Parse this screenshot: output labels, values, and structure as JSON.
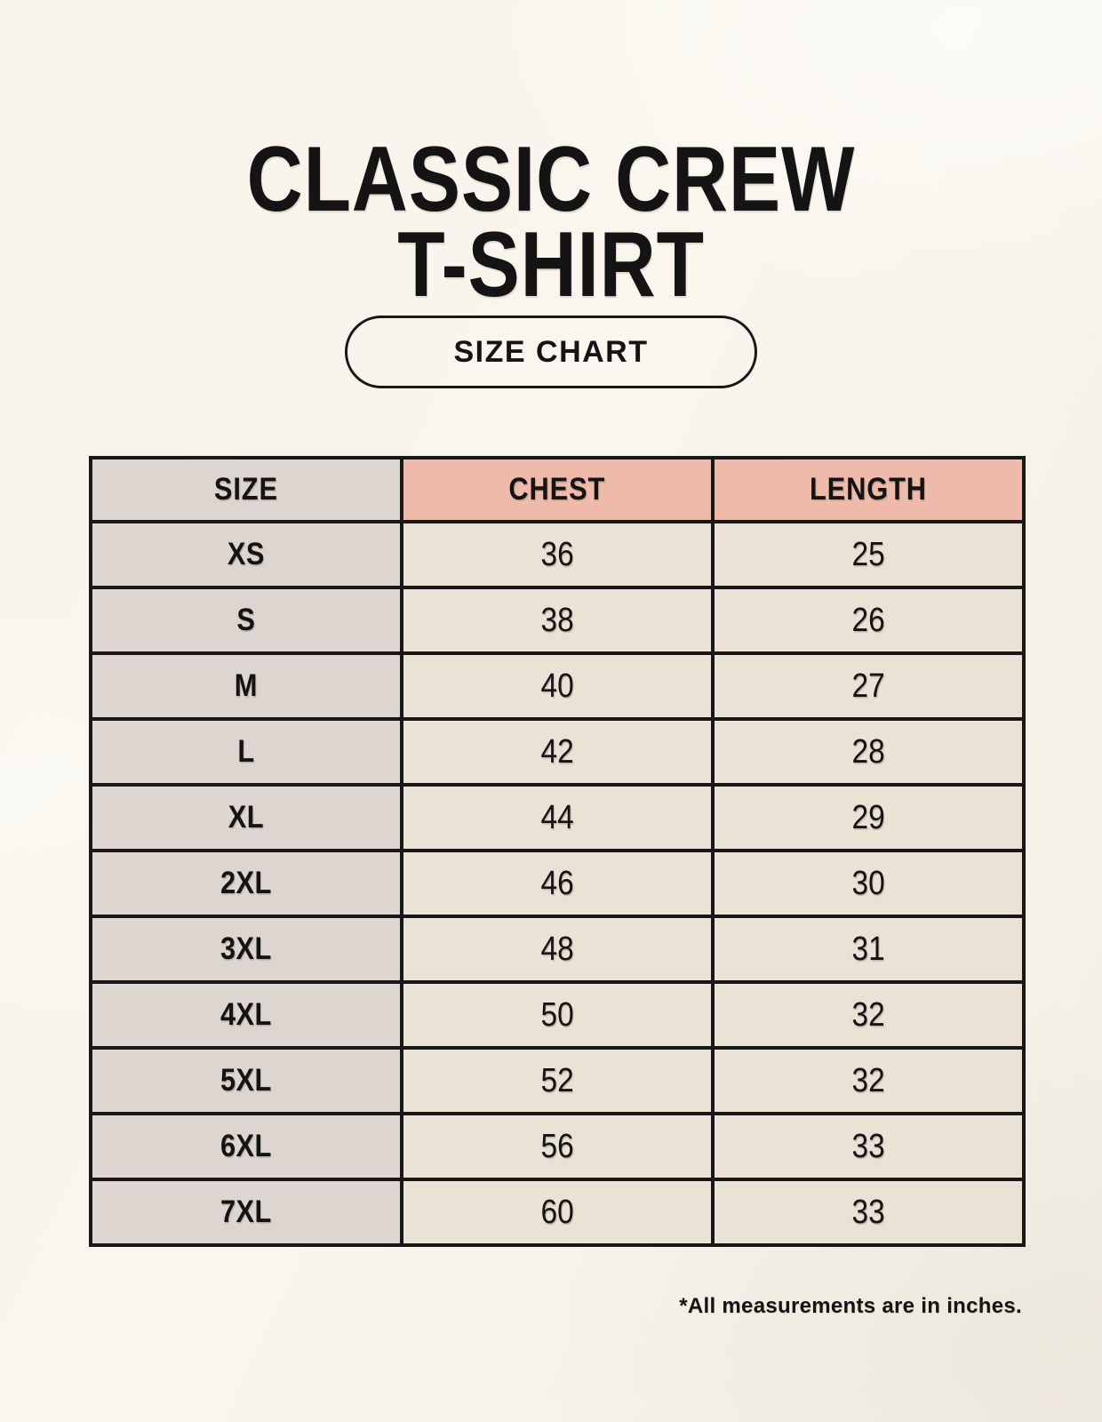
{
  "title": {
    "line1": "CLASSIC CREW",
    "line2": "T-SHIRT"
  },
  "button": {
    "label": "SIZE CHART"
  },
  "table": {
    "headers": [
      "SIZE",
      "CHEST",
      "LENGTH"
    ],
    "rows": [
      {
        "size": "XS",
        "chest": "36",
        "length": "25"
      },
      {
        "size": "S",
        "chest": "38",
        "length": "26"
      },
      {
        "size": "M",
        "chest": "40",
        "length": "27"
      },
      {
        "size": "L",
        "chest": "42",
        "length": "28"
      },
      {
        "size": "XL",
        "chest": "44",
        "length": "29"
      },
      {
        "size": "2XL",
        "chest": "46",
        "length": "30"
      },
      {
        "size": "3XL",
        "chest": "48",
        "length": "31"
      },
      {
        "size": "4XL",
        "chest": "50",
        "length": "32"
      },
      {
        "size": "5XL",
        "chest": "52",
        "length": "32"
      },
      {
        "size": "6XL",
        "chest": "56",
        "length": "33"
      },
      {
        "size": "7XL",
        "chest": "60",
        "length": "33"
      }
    ]
  },
  "footnote": "*All measurements are in inches.",
  "colors": {
    "page_bg": "#f7f3ea",
    "header_pink": "#eebbaa",
    "size_col_gray": "#ddd6d0",
    "cell_cream": "#eae2d5",
    "border_black": "#181818",
    "text_black": "#141414"
  }
}
